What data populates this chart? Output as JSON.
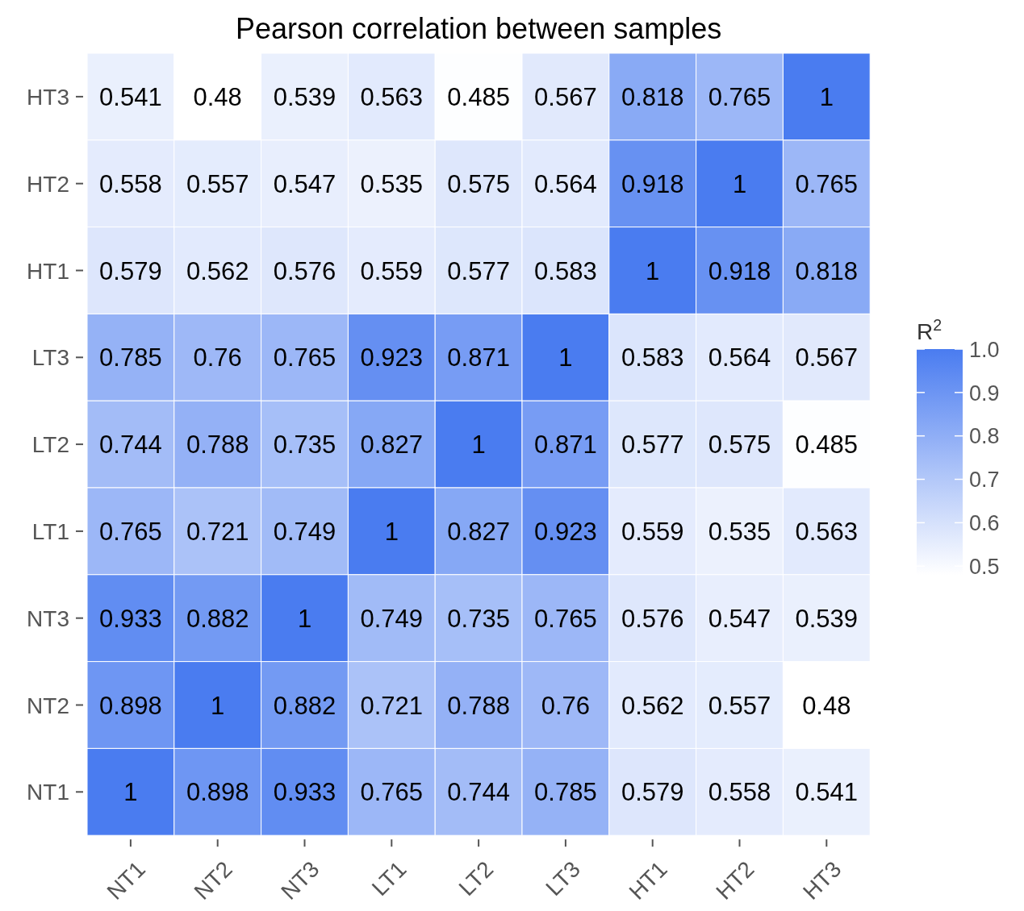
{
  "chart_data": {
    "type": "heatmap",
    "title": "Pearson correlation between samples",
    "clabel": "R$^{2}$",
    "categories": [
      "NT1",
      "NT2",
      "NT3",
      "LT1",
      "LT2",
      "LT3",
      "HT1",
      "HT2",
      "HT3"
    ],
    "y_categories": [
      "HT3",
      "HT2",
      "HT1",
      "LT3",
      "LT2",
      "LT1",
      "NT3",
      "NT2",
      "NT1"
    ],
    "cells": [
      [
        0.541,
        0.48,
        0.539,
        0.563,
        0.485,
        0.567,
        0.818,
        0.765,
        1
      ],
      [
        0.558,
        0.557,
        0.547,
        0.535,
        0.575,
        0.564,
        0.918,
        1,
        0.765
      ],
      [
        0.579,
        0.562,
        0.576,
        0.559,
        0.577,
        0.583,
        1,
        0.918,
        0.818
      ],
      [
        0.785,
        0.76,
        0.765,
        0.923,
        0.871,
        1,
        0.583,
        0.564,
        0.567
      ],
      [
        0.744,
        0.788,
        0.735,
        0.827,
        1,
        0.871,
        0.577,
        0.575,
        0.485
      ],
      [
        0.765,
        0.721,
        0.749,
        1,
        0.827,
        0.923,
        0.559,
        0.535,
        0.563
      ],
      [
        0.933,
        0.882,
        1,
        0.749,
        0.735,
        0.765,
        0.576,
        0.547,
        0.539
      ],
      [
        0.898,
        1,
        0.882,
        0.721,
        0.788,
        0.76,
        0.562,
        0.557,
        0.48
      ],
      [
        1,
        0.898,
        0.933,
        0.765,
        0.744,
        0.785,
        0.579,
        0.558,
        0.541
      ]
    ],
    "colors": [
      "#ffffff",
      "#4a7cf0"
    ],
    "clim": [
      0.48,
      1
    ],
    "cticks": [
      {
        "value": 1,
        "label": "1.0"
      },
      0.9,
      0.8,
      0.7,
      0.6,
      0.5
    ],
    "data_labels": true
  }
}
